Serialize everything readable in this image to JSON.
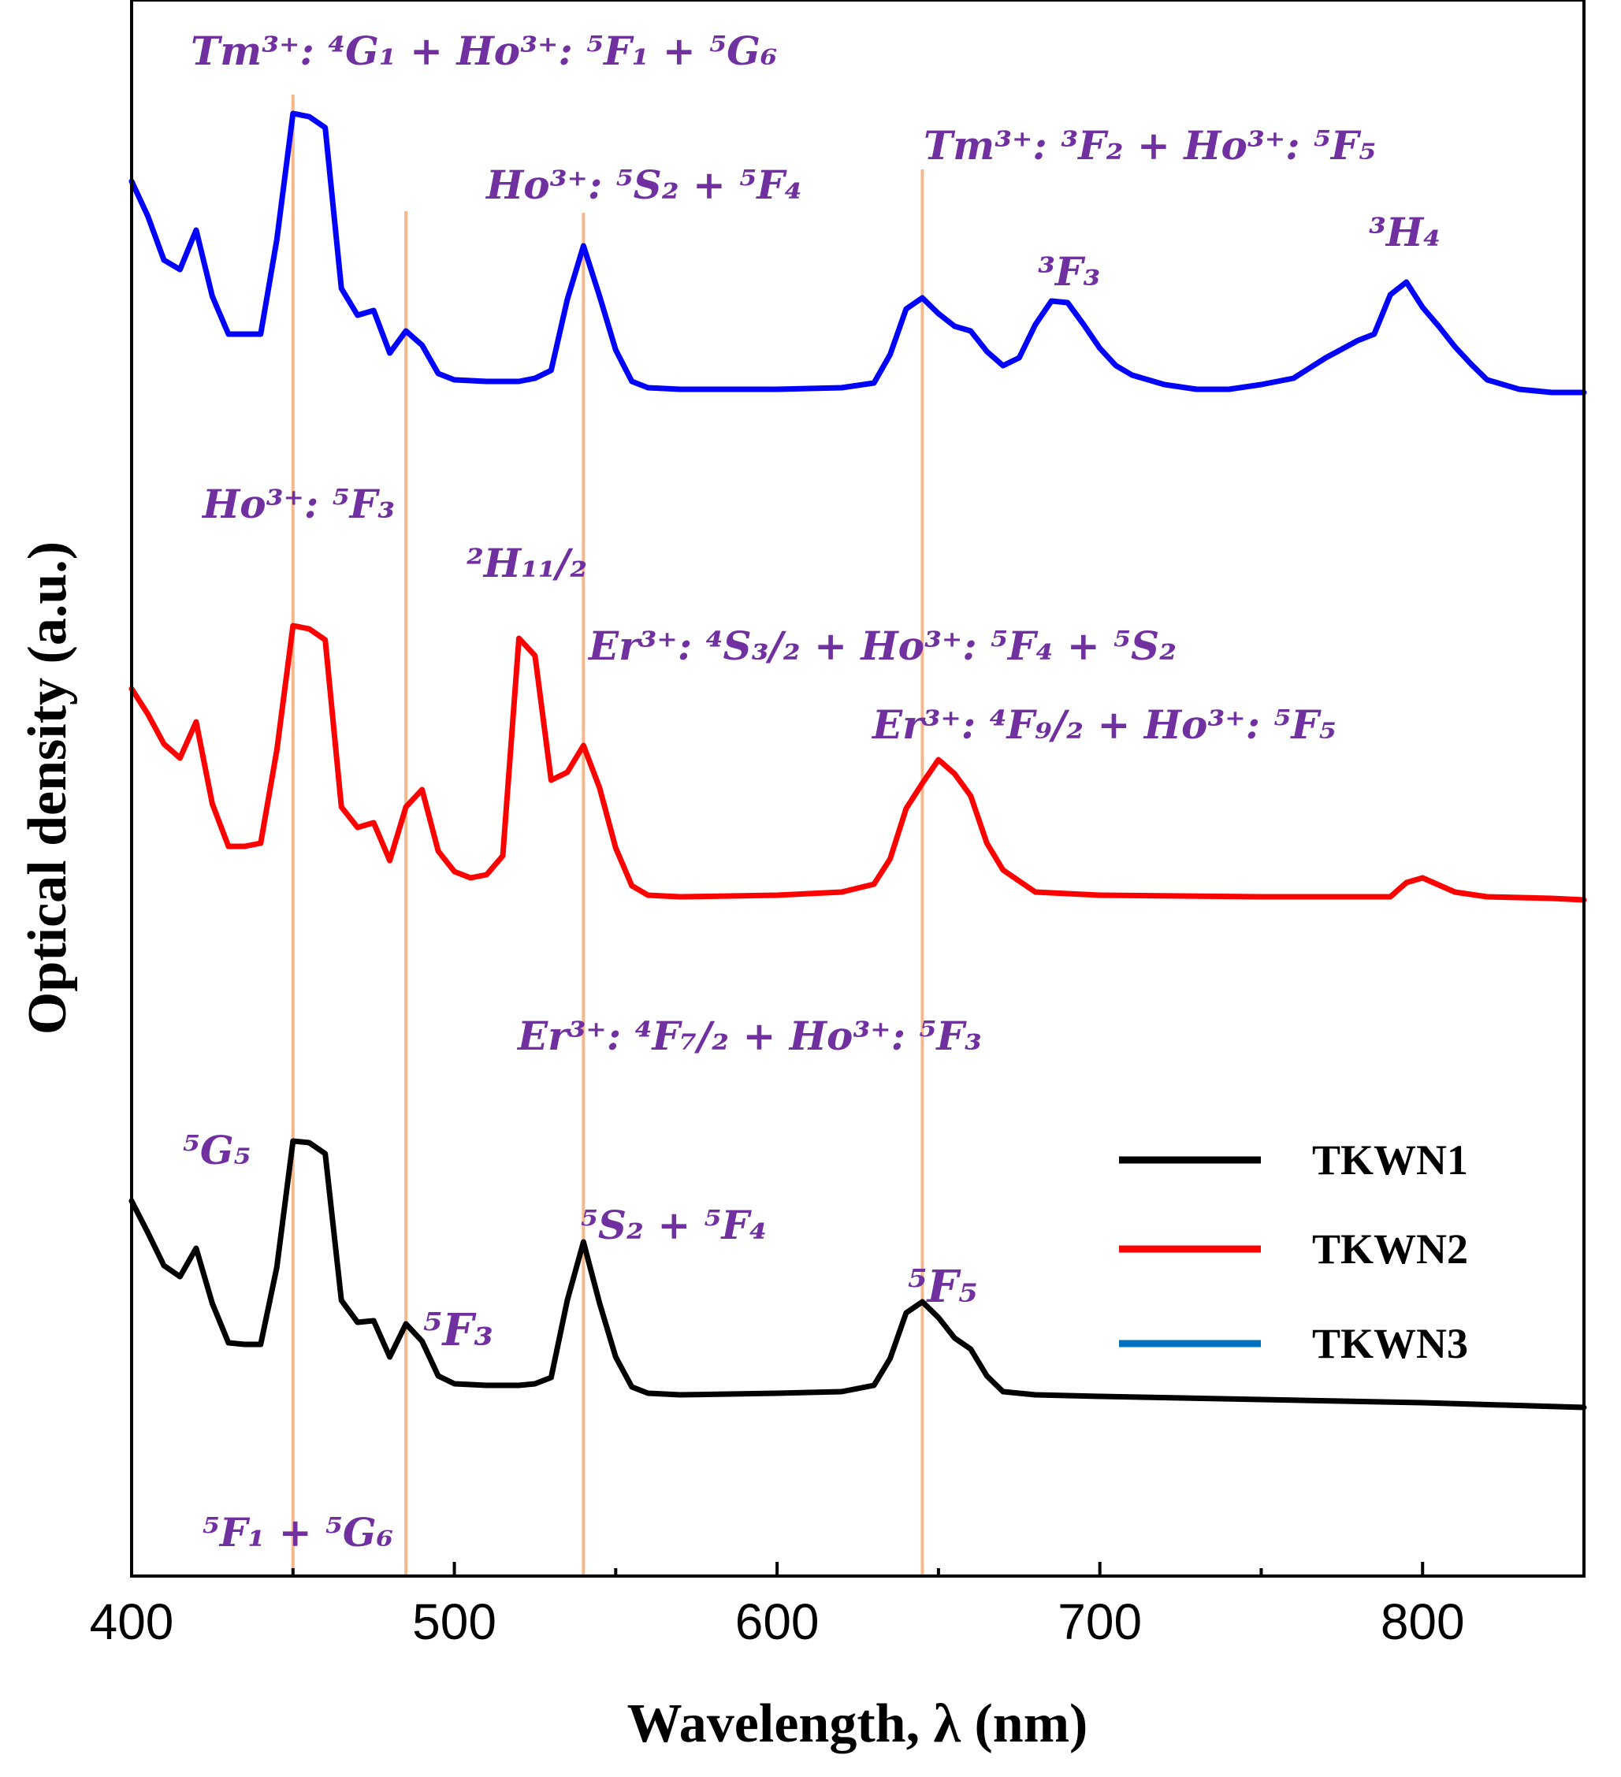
{
  "chart_data": {
    "type": "line",
    "xlabel": "Wavelength, λ (nm)",
    "ylabel": "Optical density (a.u.)",
    "xlim": [
      400,
      850
    ],
    "xticks": [
      "400",
      "500",
      "600",
      "700",
      "800"
    ],
    "xtick_values": [
      400,
      500,
      600,
      700,
      800
    ],
    "ylim": [
      0,
      1
    ],
    "y_ticks_shown": false,
    "grid": false,
    "legend_position": "lower-right",
    "reference_lines_nm": [
      450,
      485,
      540,
      645
    ],
    "reference_line_color": "#f5b88a",
    "annotation_color": "#7030a0",
    "series": [
      {
        "name": "TKWN3",
        "legend_label": "TKWN3",
        "legend_swatch_color": "#0070c0",
        "line_color": "#0000ff",
        "points": [
          [
            400,
            0.885
          ],
          [
            405,
            0.863
          ],
          [
            410,
            0.835
          ],
          [
            415,
            0.829
          ],
          [
            420,
            0.854
          ],
          [
            425,
            0.812
          ],
          [
            430,
            0.788
          ],
          [
            435,
            0.788
          ],
          [
            440,
            0.788
          ],
          [
            445,
            0.848
          ],
          [
            450,
            0.928
          ],
          [
            455,
            0.926
          ],
          [
            460,
            0.919
          ],
          [
            465,
            0.817
          ],
          [
            470,
            0.8
          ],
          [
            475,
            0.803
          ],
          [
            480,
            0.776
          ],
          [
            485,
            0.79
          ],
          [
            490,
            0.781
          ],
          [
            495,
            0.763
          ],
          [
            500,
            0.759
          ],
          [
            510,
            0.758
          ],
          [
            520,
            0.758
          ],
          [
            525,
            0.76
          ],
          [
            530,
            0.765
          ],
          [
            535,
            0.81
          ],
          [
            540,
            0.844
          ],
          [
            545,
            0.812
          ],
          [
            550,
            0.778
          ],
          [
            555,
            0.758
          ],
          [
            560,
            0.754
          ],
          [
            570,
            0.753
          ],
          [
            600,
            0.753
          ],
          [
            620,
            0.754
          ],
          [
            630,
            0.757
          ],
          [
            635,
            0.775
          ],
          [
            640,
            0.804
          ],
          [
            645,
            0.811
          ],
          [
            650,
            0.801
          ],
          [
            655,
            0.793
          ],
          [
            660,
            0.79
          ],
          [
            665,
            0.777
          ],
          [
            670,
            0.768
          ],
          [
            675,
            0.773
          ],
          [
            680,
            0.794
          ],
          [
            685,
            0.809
          ],
          [
            690,
            0.808
          ],
          [
            695,
            0.794
          ],
          [
            700,
            0.779
          ],
          [
            705,
            0.768
          ],
          [
            710,
            0.762
          ],
          [
            720,
            0.756
          ],
          [
            730,
            0.753
          ],
          [
            740,
            0.753
          ],
          [
            750,
            0.756
          ],
          [
            760,
            0.76
          ],
          [
            770,
            0.773
          ],
          [
            780,
            0.784
          ],
          [
            785,
            0.788
          ],
          [
            790,
            0.813
          ],
          [
            795,
            0.821
          ],
          [
            800,
            0.805
          ],
          [
            805,
            0.793
          ],
          [
            810,
            0.78
          ],
          [
            815,
            0.769
          ],
          [
            820,
            0.759
          ],
          [
            830,
            0.753
          ],
          [
            840,
            0.751
          ],
          [
            850,
            0.751
          ]
        ]
      },
      {
        "name": "TKWN2",
        "legend_label": "TKWN2",
        "legend_swatch_color": "#ff0000",
        "line_color": "#ff0000",
        "points": [
          [
            400,
            0.563
          ],
          [
            405,
            0.547
          ],
          [
            410,
            0.528
          ],
          [
            415,
            0.519
          ],
          [
            420,
            0.542
          ],
          [
            425,
            0.49
          ],
          [
            430,
            0.463
          ],
          [
            435,
            0.463
          ],
          [
            440,
            0.465
          ],
          [
            445,
            0.524
          ],
          [
            450,
            0.603
          ],
          [
            455,
            0.601
          ],
          [
            460,
            0.594
          ],
          [
            465,
            0.488
          ],
          [
            470,
            0.475
          ],
          [
            475,
            0.478
          ],
          [
            480,
            0.454
          ],
          [
            485,
            0.488
          ],
          [
            490,
            0.499
          ],
          [
            495,
            0.46
          ],
          [
            500,
            0.447
          ],
          [
            505,
            0.443
          ],
          [
            510,
            0.445
          ],
          [
            515,
            0.457
          ],
          [
            520,
            0.595
          ],
          [
            525,
            0.584
          ],
          [
            530,
            0.505
          ],
          [
            535,
            0.51
          ],
          [
            540,
            0.527
          ],
          [
            545,
            0.5
          ],
          [
            550,
            0.462
          ],
          [
            555,
            0.438
          ],
          [
            560,
            0.432
          ],
          [
            570,
            0.431
          ],
          [
            600,
            0.432
          ],
          [
            620,
            0.434
          ],
          [
            630,
            0.439
          ],
          [
            635,
            0.455
          ],
          [
            640,
            0.487
          ],
          [
            645,
            0.503
          ],
          [
            650,
            0.518
          ],
          [
            655,
            0.509
          ],
          [
            660,
            0.495
          ],
          [
            665,
            0.465
          ],
          [
            670,
            0.448
          ],
          [
            680,
            0.434
          ],
          [
            700,
            0.432
          ],
          [
            750,
            0.431
          ],
          [
            790,
            0.431
          ],
          [
            795,
            0.44
          ],
          [
            800,
            0.443
          ],
          [
            810,
            0.434
          ],
          [
            820,
            0.431
          ],
          [
            840,
            0.43
          ],
          [
            850,
            0.429
          ]
        ]
      },
      {
        "name": "TKWN1",
        "legend_label": "TKWN1",
        "legend_swatch_color": "#000000",
        "line_color": "#000000",
        "points": [
          [
            400,
            0.238
          ],
          [
            405,
            0.218
          ],
          [
            410,
            0.197
          ],
          [
            415,
            0.19
          ],
          [
            420,
            0.208
          ],
          [
            425,
            0.173
          ],
          [
            430,
            0.148
          ],
          [
            435,
            0.147
          ],
          [
            440,
            0.147
          ],
          [
            445,
            0.196
          ],
          [
            450,
            0.276
          ],
          [
            455,
            0.275
          ],
          [
            460,
            0.268
          ],
          [
            465,
            0.175
          ],
          [
            470,
            0.161
          ],
          [
            475,
            0.162
          ],
          [
            480,
            0.139
          ],
          [
            485,
            0.16
          ],
          [
            490,
            0.149
          ],
          [
            495,
            0.127
          ],
          [
            500,
            0.122
          ],
          [
            510,
            0.121
          ],
          [
            520,
            0.121
          ],
          [
            525,
            0.122
          ],
          [
            530,
            0.126
          ],
          [
            535,
            0.175
          ],
          [
            540,
            0.212
          ],
          [
            545,
            0.173
          ],
          [
            550,
            0.139
          ],
          [
            555,
            0.12
          ],
          [
            560,
            0.116
          ],
          [
            570,
            0.115
          ],
          [
            600,
            0.116
          ],
          [
            620,
            0.117
          ],
          [
            630,
            0.121
          ],
          [
            635,
            0.138
          ],
          [
            640,
            0.167
          ],
          [
            645,
            0.174
          ],
          [
            650,
            0.164
          ],
          [
            655,
            0.151
          ],
          [
            660,
            0.144
          ],
          [
            665,
            0.127
          ],
          [
            670,
            0.117
          ],
          [
            680,
            0.115
          ],
          [
            700,
            0.114
          ],
          [
            750,
            0.112
          ],
          [
            800,
            0.11
          ],
          [
            850,
            0.107
          ]
        ]
      }
    ],
    "annotations": {
      "blue_peak_450": "Tm³⁺:  ⁴G₁ + Ho³⁺:  ⁵F₁ +  ⁵G₆",
      "blue_peak_540": "Ho³⁺:  ⁵S₂ +  ⁵F₄",
      "blue_peak_645": "Tm³⁺:  ³F₂ + Ho³⁺:  ⁵F₅",
      "blue_peak_690": "³F₃",
      "blue_peak_795": "³H₄",
      "red_peak_450": "Ho³⁺:  ⁵F₃",
      "red_peak_520": "²H₁₁/₂",
      "red_peak_540": "Er³⁺:  ⁴S₃/₂ + Ho³⁺:  ⁵F₄ +  ⁵S₂",
      "red_peak_650": "Er³⁺:  ⁴F₉/₂ + Ho³⁺:  ⁵F₅",
      "red_below_540": "Er³⁺:  ⁴F₇/₂ + Ho³⁺:  ⁵F₃",
      "black_peak_450": "⁵G₅",
      "black_peak_540": "⁵S₂ +  ⁵F₄",
      "black_peak_485": "⁵F₃",
      "black_peak_645": "⁵F₅",
      "black_bottom_450": "⁵F₁ +  ⁵G₆"
    }
  }
}
